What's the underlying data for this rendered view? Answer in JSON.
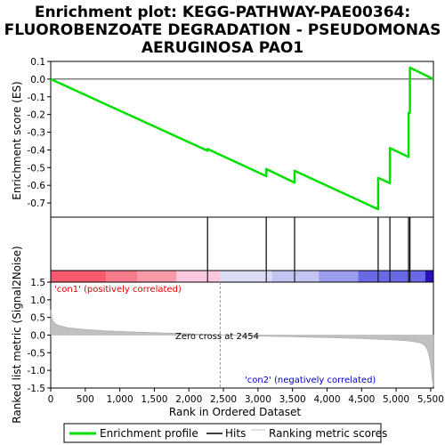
{
  "chart_data": {
    "type": "line",
    "title_lines": [
      "Enrichment plot: KEGG-PATHWAY-PAE00364:",
      "FLUOROBENZOATE DEGRADATION - PSEUDOMONAS",
      "AERUGINOSA PAO1"
    ],
    "es_panel": {
      "ylabel": "Enrichment score (ES)",
      "ylim": [
        -0.78,
        0.1
      ],
      "yticks": [
        0.1,
        0.0,
        -0.1,
        -0.2,
        -0.3,
        -0.4,
        -0.5,
        -0.6,
        -0.7
      ],
      "ytick_labels": [
        "0.1",
        "0.0",
        "-0.1",
        "-0.2",
        "-0.3",
        "-0.4",
        "-0.5",
        "-0.6",
        "-0.7"
      ],
      "series": [
        {
          "name": "Enrichment profile",
          "color": "#00e000",
          "x": [
            0,
            2270,
            2270,
            3120,
            3120,
            3530,
            3530,
            4740,
            4740,
            4910,
            4910,
            5180,
            5180,
            5200,
            5200,
            5540
          ],
          "y": [
            0.0,
            -0.405,
            -0.395,
            -0.548,
            -0.508,
            -0.585,
            -0.518,
            -0.735,
            -0.558,
            -0.588,
            -0.39,
            -0.44,
            -0.19,
            -0.19,
            0.065,
            0.0
          ]
        }
      ]
    },
    "hits": {
      "name": "Hits",
      "positions": [
        2270,
        3120,
        3530,
        4740,
        4910,
        5180,
        5200
      ]
    },
    "colorbar": {
      "segments": [
        {
          "from": 0,
          "to": 800,
          "color": "#f55a6e"
        },
        {
          "from": 800,
          "to": 1250,
          "color": "#f77a8a"
        },
        {
          "from": 1250,
          "to": 1820,
          "color": "#f99aaa"
        },
        {
          "from": 1820,
          "to": 2454,
          "color": "#fcc8e0"
        },
        {
          "from": 2454,
          "to": 3200,
          "color": "#dcdcf6"
        },
        {
          "from": 3200,
          "to": 3880,
          "color": "#c4c4f2"
        },
        {
          "from": 3880,
          "to": 4450,
          "color": "#9c9cee"
        },
        {
          "from": 4450,
          "to": 5420,
          "color": "#6a6ae8"
        },
        {
          "from": 5420,
          "to": 5540,
          "color": "#2a10b8"
        }
      ]
    },
    "metric_panel": {
      "ylabel": "Ranked list metric (Signal2Noise)",
      "ylim": [
        -1.5,
        1.5
      ],
      "yticks": [
        1.5,
        1.0,
        0.5,
        0.0,
        -0.5,
        -1.0,
        -1.5
      ],
      "ytick_labels": [
        "1.5",
        "1.0",
        "0.5",
        "0.0",
        "-0.5",
        "-1.0",
        "-1.5"
      ],
      "series": [
        {
          "name": "Ranking metric scores",
          "color": "#c0c0c0",
          "x": [
            0,
            20,
            60,
            120,
            250,
            500,
            800,
            1200,
            1600,
            2000,
            2454,
            3000,
            3500,
            4000,
            4500,
            5000,
            5200,
            5350,
            5420,
            5460,
            5490,
            5510,
            5525,
            5540
          ],
          "y": [
            0.72,
            0.45,
            0.33,
            0.27,
            0.21,
            0.16,
            0.12,
            0.09,
            0.06,
            0.04,
            0.0,
            -0.03,
            -0.05,
            -0.07,
            -0.1,
            -0.14,
            -0.17,
            -0.22,
            -0.3,
            -0.45,
            -0.7,
            -1.0,
            -1.3,
            -1.45
          ]
        }
      ],
      "zero_cross_rank": 2454,
      "zero_cross_text": "Zero cross at 2454",
      "pos_label": "'con1' (positively correlated)",
      "neg_label": "'con2' (negatively correlated)",
      "pos_color": "#e00000",
      "neg_color": "#0000cc"
    },
    "xaxis": {
      "label": "Rank in Ordered Dataset",
      "xlim": [
        0,
        5540
      ],
      "ticks": [
        0,
        500,
        1000,
        1500,
        2000,
        2500,
        3000,
        3500,
        4000,
        4500,
        5000,
        5500
      ],
      "tick_labels": [
        "0",
        "500",
        "1,000",
        "1,500",
        "2,000",
        "2,500",
        "3,000",
        "3,500",
        "4,000",
        "4,500",
        "5,000",
        "5,500"
      ]
    },
    "legend": {
      "placement": "bottom",
      "entries": [
        {
          "label": "Enrichment profile",
          "color": "#00e000",
          "style": "thick-line"
        },
        {
          "label": "Hits",
          "color": "#000000",
          "style": "line"
        },
        {
          "label": "Ranking metric scores",
          "color": "#c0c0c0",
          "style": "line"
        }
      ]
    }
  }
}
